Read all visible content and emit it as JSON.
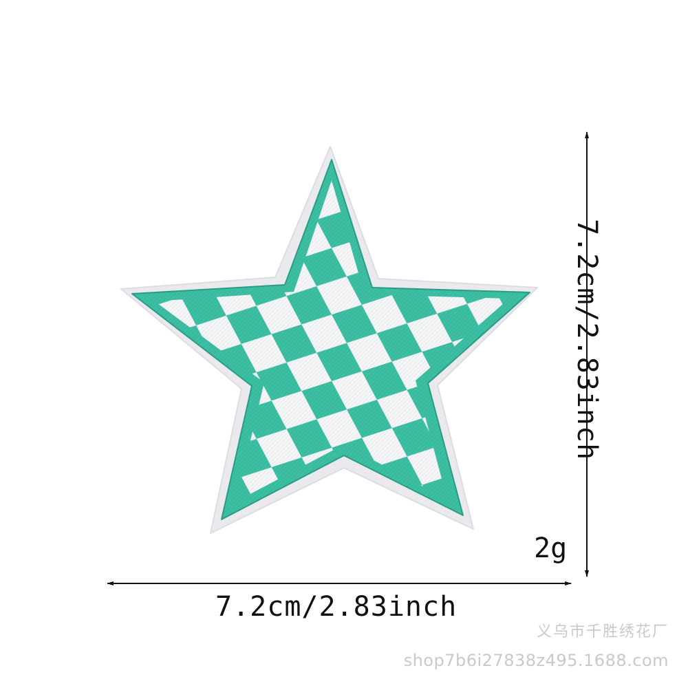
{
  "product": {
    "name": "star-embroidered-patch",
    "colors": {
      "stitch": "#3cbfa3",
      "stitch_dark": "#2a9d86",
      "checker": "#f4f6f7",
      "backing": "#e9e9ee",
      "background": "#ffffff",
      "text": "#111111",
      "watermark": "#c9c9c9"
    }
  },
  "dimensions": {
    "width_label": "7.2cm/2.83inch",
    "height_label": "7.2cm/2.83inch",
    "weight_label": "2g"
  },
  "watermark": {
    "line1": "义乌市千胜绣花厂",
    "line2": "shop7b6i27838z495.1688.com"
  }
}
